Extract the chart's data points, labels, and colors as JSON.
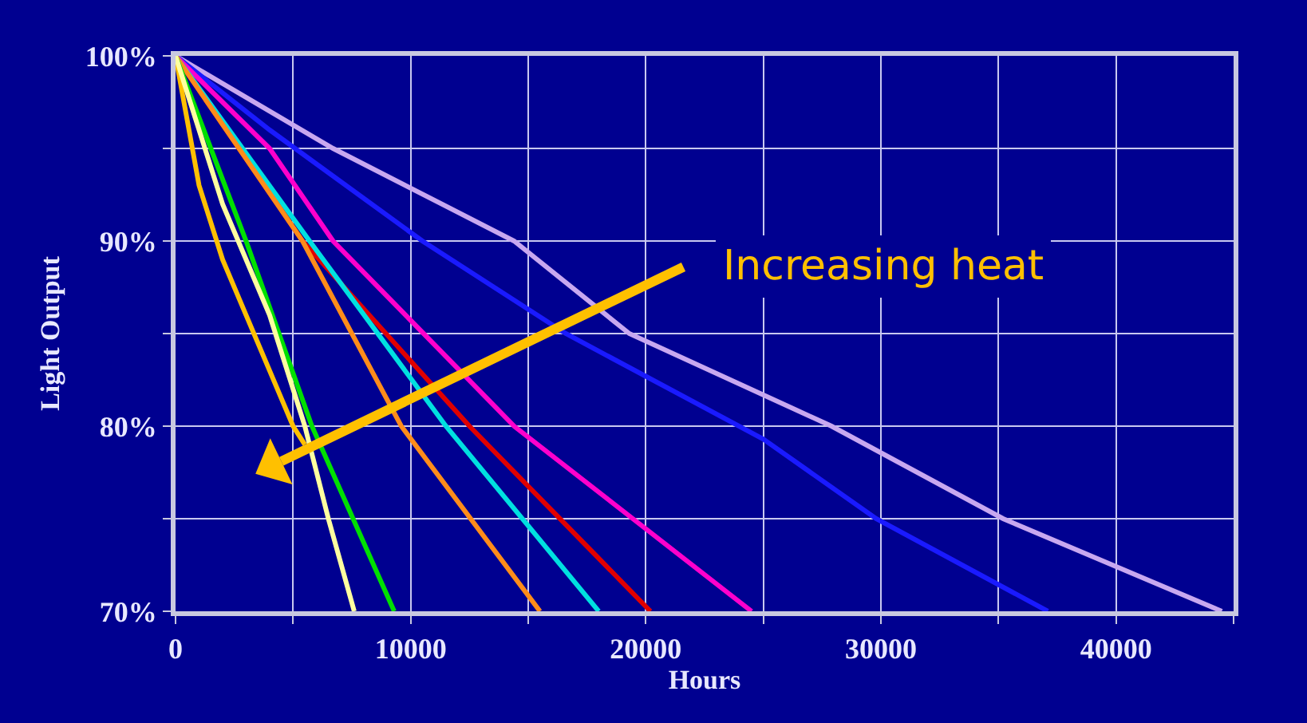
{
  "chart_data": {
    "type": "line",
    "xlabel": "Hours",
    "ylabel": "Light Output",
    "xlim": [
      0,
      45000
    ],
    "ylim": [
      70,
      100
    ],
    "xticks": [
      0,
      {
        "value": 5000,
        "label": null
      },
      10000,
      {
        "value": 15000,
        "label": null
      },
      20000,
      {
        "value": 25000,
        "label": null
      },
      30000,
      {
        "value": 35000,
        "label": null
      },
      40000,
      {
        "value": 45000,
        "label": null
      }
    ],
    "yticks": [
      {
        "value": 70,
        "label": "70%"
      },
      {
        "value": 75,
        "label": null
      },
      {
        "value": 80,
        "label": "80%"
      },
      {
        "value": 85,
        "label": null
      },
      {
        "value": 90,
        "label": "90%"
      },
      {
        "value": 95,
        "label": null
      },
      {
        "value": 100,
        "label": "100%"
      }
    ],
    "grid": true,
    "marker": "none",
    "line_style": "solid",
    "annotations": [
      "Increasing heat"
    ],
    "series": [
      {
        "color": "#c8a8f0",
        "x": [
          0,
          6700,
          14400,
          19300,
          27900,
          35200,
          44500
        ],
        "values": [
          100,
          95,
          90,
          85,
          80,
          75,
          70
        ]
      },
      {
        "color": "#1a1aff",
        "x": [
          0,
          4000,
          10500,
          16600,
          25000,
          29800,
          37100
        ],
        "values": [
          100,
          96,
          90,
          85,
          79.3,
          75,
          70
        ]
      },
      {
        "color": "#ff00cc",
        "x": [
          0,
          4000,
          6700,
          14400,
          24500
        ],
        "values": [
          100,
          95,
          90,
          80,
          70
        ]
      },
      {
        "color": "#e00000",
        "x": [
          0,
          5400,
          12500,
          20200
        ],
        "values": [
          100,
          90,
          80,
          70
        ]
      },
      {
        "color": "#00e0e0",
        "x": [
          0,
          5700,
          11500,
          18000
        ],
        "values": [
          100,
          90,
          80,
          70
        ]
      },
      {
        "color": "#ff8c1a",
        "x": [
          0,
          5400,
          9600,
          15500
        ],
        "values": [
          100,
          90,
          80,
          70
        ]
      },
      {
        "color": "#00e000",
        "x": [
          0,
          3000,
          5800,
          9300
        ],
        "values": [
          100,
          90,
          80,
          70
        ]
      },
      {
        "color": "#ffc000",
        "x": [
          0,
          1000,
          2000,
          3000,
          4000,
          5000,
          5500
        ],
        "values": [
          100,
          93,
          89,
          86,
          83,
          80,
          79
        ]
      },
      {
        "color": "#ffffa0",
        "x": [
          0,
          2000,
          4000,
          5500,
          6500,
          7600
        ],
        "values": [
          100,
          92,
          86,
          80,
          75,
          70
        ]
      }
    ]
  }
}
